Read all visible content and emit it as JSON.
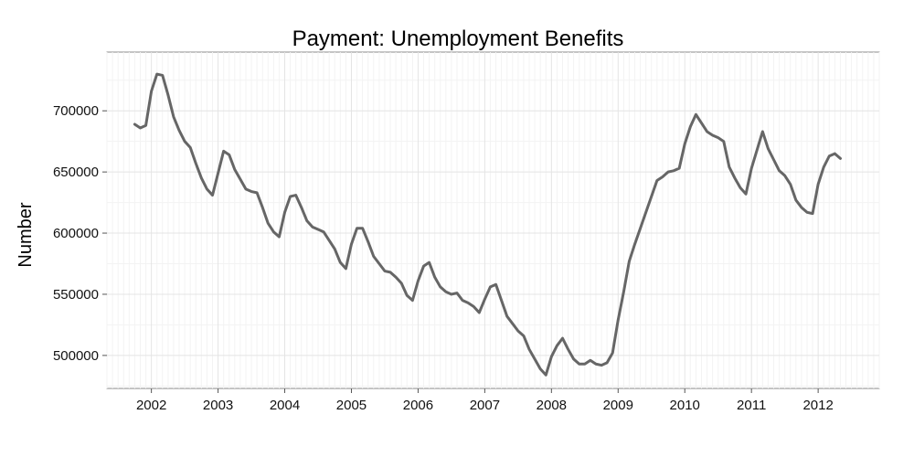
{
  "chart_data": {
    "type": "line",
    "title": "Payment: Unemployment Benefits",
    "xlabel": "",
    "ylabel": "Number",
    "x_ticks": [
      "2002",
      "2003",
      "2004",
      "2005",
      "2006",
      "2007",
      "2008",
      "2009",
      "2010",
      "2011",
      "2012"
    ],
    "y_ticks": [
      "500000",
      "550000",
      "600000",
      "650000",
      "700000"
    ],
    "xlim": [
      "2001-05",
      "2012-12"
    ],
    "ylim": [
      473000,
      748000
    ],
    "grid": true,
    "line_color": "#666666",
    "series": [
      {
        "x": [
          "2001-10",
          "2001-11",
          "2001-12",
          "2002-01",
          "2002-02",
          "2002-03",
          "2002-04",
          "2002-05",
          "2002-06",
          "2002-07",
          "2002-08",
          "2002-09",
          "2002-10",
          "2002-11",
          "2002-12",
          "2003-01",
          "2003-02",
          "2003-03",
          "2003-04",
          "2003-05",
          "2003-06",
          "2003-07",
          "2003-08",
          "2003-09",
          "2003-10",
          "2003-11",
          "2003-12",
          "2004-01",
          "2004-02",
          "2004-03",
          "2004-04",
          "2004-05",
          "2004-06",
          "2004-07",
          "2004-08",
          "2004-09",
          "2004-10",
          "2004-11",
          "2004-12",
          "2005-01",
          "2005-02",
          "2005-03",
          "2005-04",
          "2005-05",
          "2005-06",
          "2005-07",
          "2005-08",
          "2005-09",
          "2005-10",
          "2005-11",
          "2005-12",
          "2006-01",
          "2006-02",
          "2006-03",
          "2006-04",
          "2006-05",
          "2006-06",
          "2006-07",
          "2006-08",
          "2006-09",
          "2006-10",
          "2006-11",
          "2006-12",
          "2007-01",
          "2007-02",
          "2007-03",
          "2007-04",
          "2007-05",
          "2007-06",
          "2007-07",
          "2007-08",
          "2007-09",
          "2007-10",
          "2007-11",
          "2007-12",
          "2008-01",
          "2008-02",
          "2008-03",
          "2008-04",
          "2008-05",
          "2008-06",
          "2008-07",
          "2008-08",
          "2008-09",
          "2008-10",
          "2008-11",
          "2008-12",
          "2009-01",
          "2009-02",
          "2009-03",
          "2009-04",
          "2009-05",
          "2009-06",
          "2009-07",
          "2009-08",
          "2009-09",
          "2009-10",
          "2009-11",
          "2009-12",
          "2010-01",
          "2010-02",
          "2010-03",
          "2010-04",
          "2010-05",
          "2010-06",
          "2010-07",
          "2010-08",
          "2010-09",
          "2010-10",
          "2010-11",
          "2010-12",
          "2011-01",
          "2011-02",
          "2011-03",
          "2011-04",
          "2011-05",
          "2011-06",
          "2011-07",
          "2011-08",
          "2011-09",
          "2011-10",
          "2011-11",
          "2011-12",
          "2012-01",
          "2012-02",
          "2012-03",
          "2012-04",
          "2012-05"
        ],
        "y": [
          689000,
          686000,
          688000,
          716000,
          730000,
          729000,
          713000,
          695000,
          684000,
          675000,
          670000,
          657000,
          645000,
          636000,
          631000,
          649000,
          667000,
          664000,
          652000,
          644000,
          636000,
          634000,
          633000,
          621000,
          608000,
          601000,
          597000,
          617000,
          630000,
          631000,
          621000,
          610000,
          605000,
          603000,
          601000,
          594000,
          587000,
          576000,
          571000,
          591000,
          604000,
          604000,
          593000,
          581000,
          575000,
          569000,
          568000,
          564000,
          559000,
          549000,
          545000,
          561000,
          573000,
          576000,
          564000,
          556000,
          552000,
          550000,
          551000,
          545000,
          543000,
          540000,
          535000,
          546000,
          556000,
          558000,
          545000,
          532000,
          526000,
          520000,
          516000,
          505000,
          497000,
          489000,
          484000,
          499000,
          508000,
          514000,
          505000,
          497000,
          493000,
          493000,
          496000,
          493000,
          492000,
          494000,
          502000,
          529000,
          552000,
          577000,
          591000,
          604000,
          617000,
          630000,
          643000,
          646000,
          650000,
          651000,
          653000,
          673000,
          687000,
          697000,
          690000,
          683000,
          680000,
          678000,
          675000,
          654000,
          645000,
          637000,
          632000,
          653000,
          668000,
          683000,
          669000,
          660000,
          651000,
          647000,
          640000,
          627000,
          621000,
          617000,
          616000,
          640000,
          654000,
          663000,
          665000,
          661000
        ]
      }
    ]
  }
}
